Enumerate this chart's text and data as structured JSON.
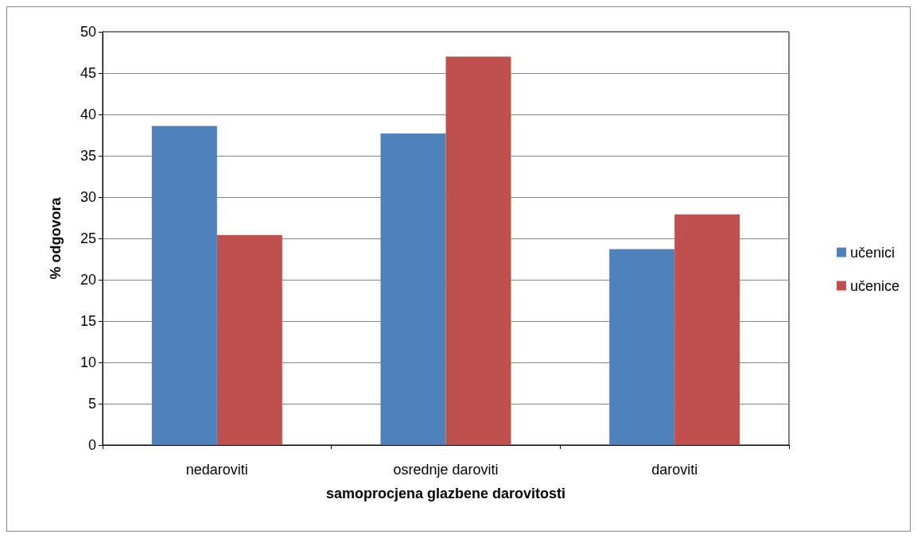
{
  "chart_data": {
    "type": "bar",
    "xlabel": "samoprocjena glazbene darovitosti",
    "ylabel": "% odgovora",
    "categories": [
      "nedaroviti",
      "osrednje daroviti",
      "daroviti"
    ],
    "series": [
      {
        "name": "učenici",
        "color": "#4f81bd",
        "values": [
          38.6,
          37.7,
          23.7
        ]
      },
      {
        "name": "učenice",
        "color": "#c0504d",
        "values": [
          25.4,
          47.0,
          27.9
        ]
      }
    ],
    "ylim": [
      0,
      50
    ],
    "yticks": [
      0,
      5,
      10,
      15,
      20,
      25,
      30,
      35,
      40,
      45,
      50
    ],
    "grid": "y",
    "legend": "right"
  }
}
